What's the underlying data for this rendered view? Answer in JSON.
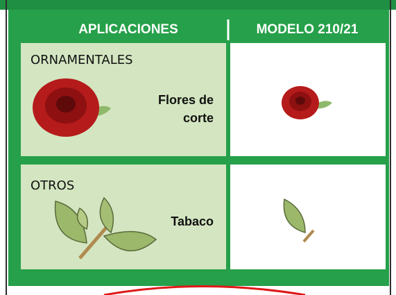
{
  "table": {
    "header": [
      "APLICACIONES",
      "MODELO 210/21"
    ],
    "rows": [
      {
        "category": "ORNAMENTALES",
        "application": [
          "Flores de",
          "corte"
        ]
      },
      {
        "category": "OTROS",
        "application": [
          "Tabaco"
        ]
      }
    ]
  }
}
